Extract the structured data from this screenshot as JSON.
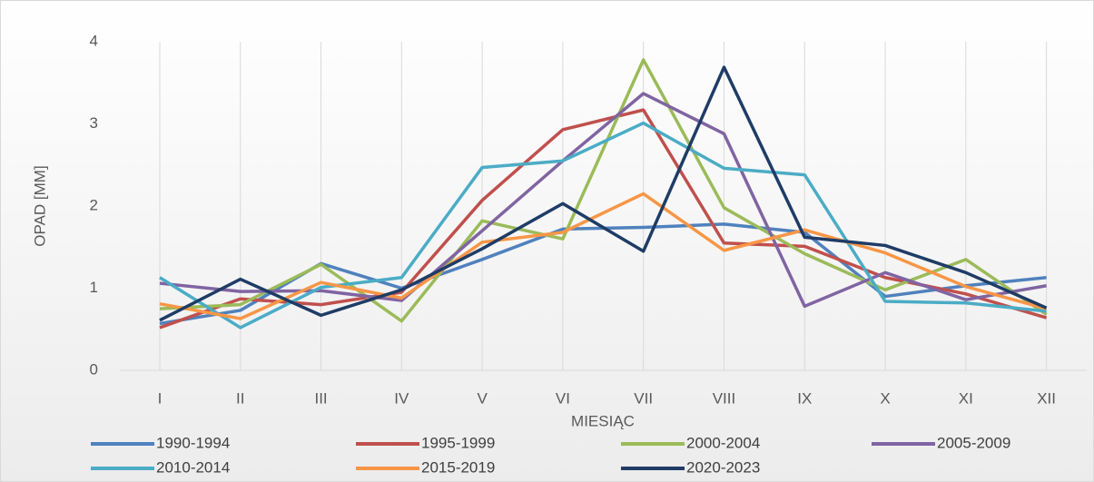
{
  "chart_data": {
    "type": "line",
    "x_label": "MIESIĄC",
    "y_label": "OPAD [MM]",
    "categories": [
      "I",
      "II",
      "III",
      "IV",
      "V",
      "VI",
      "VII",
      "VIII",
      "IX",
      "X",
      "XI",
      "XII"
    ],
    "ylim": [
      0,
      4
    ],
    "yticks": [
      0,
      1,
      2,
      3,
      4
    ],
    "grid": true,
    "legend": "bottom",
    "series": [
      {
        "name": "1990-1994",
        "color": "#4f81bd",
        "values": [
          0.57,
          0.73,
          1.3,
          1.0,
          1.35,
          1.72,
          1.74,
          1.78,
          1.68,
          0.9,
          1.03,
          1.13
        ]
      },
      {
        "name": "1995-1999",
        "color": "#c0504d",
        "values": [
          0.52,
          0.87,
          0.8,
          0.95,
          2.07,
          2.93,
          3.17,
          1.55,
          1.51,
          1.13,
          0.93,
          0.64
        ]
      },
      {
        "name": "2000-2004",
        "color": "#9bbb59",
        "values": [
          0.75,
          0.8,
          1.29,
          0.6,
          1.82,
          1.6,
          3.78,
          1.98,
          1.42,
          0.98,
          1.35,
          0.68
        ]
      },
      {
        "name": "2005-2009",
        "color": "#8064a2",
        "values": [
          1.06,
          0.96,
          0.97,
          0.85,
          1.7,
          2.55,
          3.37,
          2.88,
          0.78,
          1.19,
          0.86,
          1.03
        ]
      },
      {
        "name": "2010-2014",
        "color": "#4bacc6",
        "values": [
          1.13,
          0.52,
          1.01,
          1.13,
          2.47,
          2.55,
          3.01,
          2.46,
          2.38,
          0.84,
          0.82,
          0.72
        ]
      },
      {
        "name": "2015-2019",
        "color": "#f79646",
        "values": [
          0.81,
          0.63,
          1.07,
          0.88,
          1.56,
          1.68,
          2.15,
          1.46,
          1.71,
          1.43,
          1.02,
          0.75
        ]
      },
      {
        "name": "2020-2023",
        "color": "#1f3c66",
        "values": [
          0.61,
          1.11,
          0.67,
          0.98,
          1.48,
          2.03,
          1.45,
          3.69,
          1.62,
          1.52,
          1.19,
          0.76
        ]
      }
    ]
  }
}
